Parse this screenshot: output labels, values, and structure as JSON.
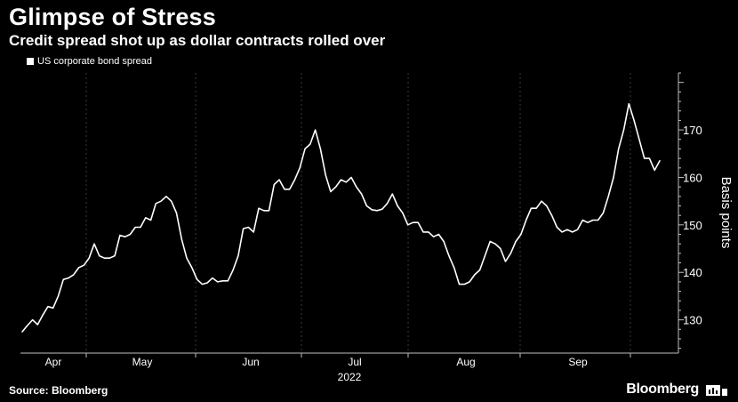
{
  "header": {
    "title": "Glimpse of Stress",
    "subtitle": "Credit spread shot up as dollar contracts rolled over"
  },
  "footer": {
    "source": "Source: Bloomberg",
    "brand": "Bloomberg"
  },
  "colors": {
    "background": "#000000",
    "line": "#ffffff",
    "arrow": "#8ecf3a",
    "grid": "#3a3a3a"
  },
  "chart_data": {
    "type": "line",
    "ylabel": "Basis points",
    "xlabel": "2022",
    "ylim": [
      123,
      182
    ],
    "y_ticks": [
      130,
      140,
      150,
      160,
      170
    ],
    "y_axis_position": "right",
    "grid": "vertical dashed",
    "legend": "top-left",
    "x_ticks": [
      "Apr",
      "May",
      "Jun",
      "Jul",
      "Aug",
      "Sep"
    ],
    "series": [
      {
        "name": "US corporate bond spread",
        "values": [
          127.5,
          128.8,
          130,
          129,
          131,
          132.8,
          132.5,
          135,
          138.5,
          138.8,
          139.5,
          141,
          141.5,
          143,
          146,
          143.5,
          143,
          143,
          143.5,
          147.8,
          147.5,
          148,
          149.5,
          149.5,
          151.5,
          151,
          154.5,
          155,
          156,
          155,
          152.5,
          147,
          143,
          141,
          138.5,
          137.5,
          137.8,
          138.8,
          138,
          138.2,
          138.2,
          140.5,
          143.5,
          149.2,
          149.5,
          148.5,
          153.5,
          153,
          153,
          158.5,
          159.5,
          157.5,
          157.5,
          159.5,
          162,
          166,
          167,
          170,
          166,
          160.5,
          157,
          158,
          159.5,
          159,
          160,
          158,
          156.5,
          154,
          153.2,
          153,
          153.3,
          154.5,
          156.5,
          154,
          152.5,
          150,
          150.5,
          150.5,
          148.5,
          148.5,
          147.5,
          148,
          146.5,
          143.5,
          141,
          137.5,
          137.5,
          138,
          139.5,
          140.5,
          143.5,
          146.5,
          146,
          145,
          142.3,
          144,
          146.5,
          148,
          151,
          153.5,
          153.5,
          155,
          154,
          152,
          149.5,
          148.5,
          149,
          148.5,
          149,
          151,
          150.5,
          151,
          151,
          152.5,
          156,
          160,
          166,
          170,
          175.5,
          172,
          168,
          164,
          164,
          161.5,
          163.5
        ]
      }
    ],
    "annotations": [
      {
        "type": "arrow",
        "from": {
          "x": 169,
          "y": 155.5
        },
        "to": {
          "x": 176,
          "y": 173.5
        }
      }
    ]
  }
}
